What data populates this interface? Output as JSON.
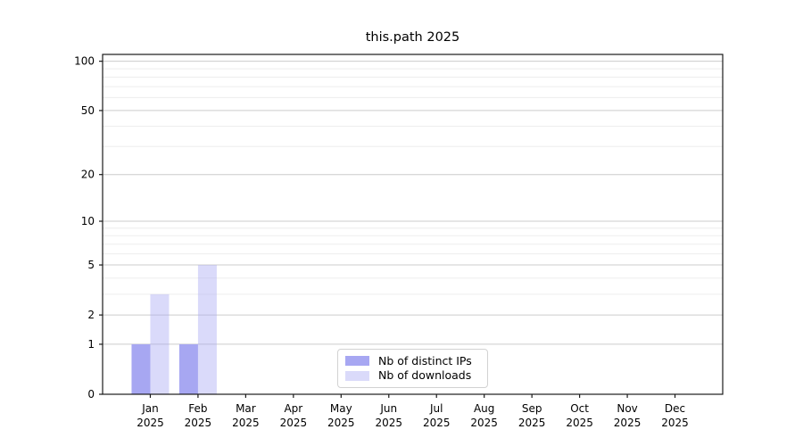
{
  "chart_data": {
    "type": "bar",
    "title": "this.path 2025",
    "categories": [
      "Jan 2025",
      "Feb 2025",
      "Mar 2025",
      "Apr 2025",
      "May 2025",
      "Jun 2025",
      "Jul 2025",
      "Aug 2025",
      "Sep 2025",
      "Oct 2025",
      "Nov 2025",
      "Dec 2025"
    ],
    "series": [
      {
        "name": "Nb of distinct IPs",
        "color": "#a7a7f2",
        "opacity": 1,
        "values": [
          1,
          1,
          0,
          0,
          0,
          0,
          0,
          0,
          0,
          0,
          0,
          0
        ]
      },
      {
        "name": "Nb of downloads",
        "color": "#a7a7f2",
        "opacity": 0.42,
        "values": [
          3,
          5,
          0,
          0,
          0,
          0,
          0,
          0,
          0,
          0,
          0,
          0
        ]
      }
    ],
    "xlabel": "",
    "ylabel": "",
    "yscale": "log1p",
    "ylim": [
      0,
      110
    ],
    "yticks": [
      0,
      1,
      2,
      5,
      10,
      20,
      50,
      100
    ],
    "minor_gridlines": [
      3,
      4,
      6,
      7,
      8,
      9,
      30,
      40,
      60,
      70,
      80,
      90
    ],
    "grid": "horizontal",
    "legend_position": "inside-bottom-center"
  },
  "colors": {
    "major_grid": "#cccccc",
    "minor_grid": "#ededed",
    "axis": "#1a1a1a",
    "tick_text": "#000000"
  }
}
